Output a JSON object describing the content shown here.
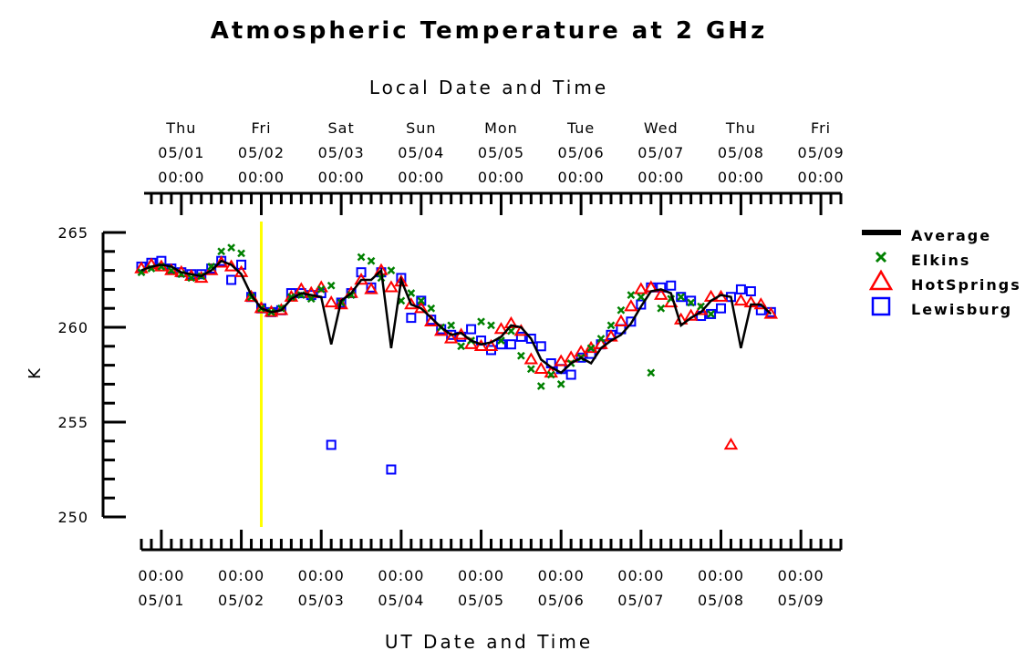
{
  "chart_data": {
    "type": "line",
    "title": "Atmospheric Temperature at 2 GHz",
    "xlabel_top": "Local Date and Time",
    "xlabel_bottom": "UT Date and Time",
    "ylabel": "K",
    "ylim": [
      250,
      265
    ],
    "yticks": [
      250,
      255,
      260,
      265
    ],
    "top_ticks": [
      {
        "x": 0.5,
        "day": "Thu",
        "date": "05/01",
        "time": "00:00"
      },
      {
        "x": 1.5,
        "day": "Fri",
        "date": "05/02",
        "time": "00:00"
      },
      {
        "x": 2.5,
        "day": "Sat",
        "date": "05/03",
        "time": "00:00"
      },
      {
        "x": 3.5,
        "day": "Sun",
        "date": "05/04",
        "time": "00:00"
      },
      {
        "x": 4.5,
        "day": "Mon",
        "date": "05/05",
        "time": "00:00"
      },
      {
        "x": 5.5,
        "day": "Tue",
        "date": "05/06",
        "time": "00:00"
      },
      {
        "x": 6.5,
        "day": "Wed",
        "date": "05/07",
        "time": "00:00"
      },
      {
        "x": 7.5,
        "day": "Thu",
        "date": "05/08",
        "time": "00:00"
      },
      {
        "x": 8.5,
        "day": "Fri",
        "date": "05/09",
        "time": "00:00"
      }
    ],
    "bottom_ticks": [
      {
        "x": 0.25,
        "time": "00:00",
        "date": "05/01"
      },
      {
        "x": 1.25,
        "time": "00:00",
        "date": "05/02"
      },
      {
        "x": 2.25,
        "time": "00:00",
        "date": "05/03"
      },
      {
        "x": 3.25,
        "time": "00:00",
        "date": "05/04"
      },
      {
        "x": 4.25,
        "time": "00:00",
        "date": "05/05"
      },
      {
        "x": 5.25,
        "time": "00:00",
        "date": "05/06"
      },
      {
        "x": 6.25,
        "time": "00:00",
        "date": "05/07"
      },
      {
        "x": 7.25,
        "time": "00:00",
        "date": "05/08"
      },
      {
        "x": 8.25,
        "time": "00:00",
        "date": "05/09"
      }
    ],
    "xlim": [
      0,
      8.75
    ],
    "marker_line": {
      "x": 1.5,
      "color": "#ffff00"
    },
    "legend_position": "right",
    "series": [
      {
        "name": "Average",
        "color": "#000000",
        "style": "line",
        "points": [
          [
            0.0,
            263.0
          ],
          [
            0.125,
            263.2
          ],
          [
            0.25,
            263.3
          ],
          [
            0.375,
            263.2
          ],
          [
            0.5,
            262.9
          ],
          [
            0.625,
            262.8
          ],
          [
            0.75,
            262.7
          ],
          [
            0.875,
            263.0
          ],
          [
            1.0,
            263.5
          ],
          [
            1.125,
            263.3
          ],
          [
            1.25,
            262.8
          ],
          [
            1.375,
            261.7
          ],
          [
            1.5,
            261.0
          ],
          [
            1.625,
            260.8
          ],
          [
            1.75,
            260.9
          ],
          [
            1.875,
            261.5
          ],
          [
            2.0,
            261.8
          ],
          [
            2.125,
            261.7
          ],
          [
            2.25,
            261.6
          ],
          [
            2.375,
            259.1
          ],
          [
            2.5,
            261.4
          ],
          [
            2.625,
            261.8
          ],
          [
            2.75,
            262.5
          ],
          [
            2.875,
            262.5
          ],
          [
            3.0,
            263.0
          ],
          [
            3.125,
            258.9
          ],
          [
            3.25,
            262.5
          ],
          [
            3.375,
            261.2
          ],
          [
            3.5,
            261.0
          ],
          [
            3.625,
            260.5
          ],
          [
            3.75,
            260.0
          ],
          [
            3.875,
            259.6
          ],
          [
            4.0,
            259.7
          ],
          [
            4.125,
            259.3
          ],
          [
            4.25,
            259.1
          ],
          [
            4.375,
            259.2
          ],
          [
            4.5,
            259.5
          ],
          [
            4.625,
            260.1
          ],
          [
            4.75,
            260.0
          ],
          [
            4.875,
            259.4
          ],
          [
            5.0,
            258.3
          ],
          [
            5.125,
            257.9
          ],
          [
            5.25,
            257.6
          ],
          [
            5.375,
            258.1
          ],
          [
            5.5,
            258.4
          ],
          [
            5.625,
            258.1
          ],
          [
            5.75,
            258.9
          ],
          [
            5.875,
            259.3
          ],
          [
            6.0,
            259.6
          ],
          [
            6.125,
            260.2
          ],
          [
            6.25,
            261.1
          ],
          [
            6.375,
            261.9
          ],
          [
            6.5,
            262.0
          ],
          [
            6.625,
            261.8
          ],
          [
            6.75,
            260.1
          ],
          [
            6.875,
            260.5
          ],
          [
            7.0,
            260.8
          ],
          [
            7.125,
            261.4
          ],
          [
            7.25,
            261.7
          ],
          [
            7.375,
            261.6
          ],
          [
            7.5,
            258.9
          ],
          [
            7.625,
            261.2
          ],
          [
            7.75,
            261.2
          ],
          [
            7.875,
            260.7
          ]
        ]
      },
      {
        "name": "Elkins",
        "color": "#008000",
        "style": "x",
        "points": [
          [
            0.0,
            262.9
          ],
          [
            0.125,
            263.1
          ],
          [
            0.25,
            263.2
          ],
          [
            0.375,
            263.0
          ],
          [
            0.5,
            262.8
          ],
          [
            0.625,
            262.6
          ],
          [
            0.75,
            262.7
          ],
          [
            0.875,
            263.2
          ],
          [
            1.0,
            264.0
          ],
          [
            1.125,
            264.2
          ],
          [
            1.25,
            263.9
          ],
          [
            1.375,
            261.6
          ],
          [
            1.5,
            261.0
          ],
          [
            1.625,
            260.8
          ],
          [
            1.75,
            261.0
          ],
          [
            1.875,
            261.6
          ],
          [
            2.0,
            261.7
          ],
          [
            2.125,
            261.5
          ],
          [
            2.25,
            262.0
          ],
          [
            2.375,
            262.2
          ],
          [
            2.5,
            261.3
          ],
          [
            2.625,
            261.7
          ],
          [
            2.75,
            263.7
          ],
          [
            2.875,
            263.5
          ],
          [
            3.0,
            262.6
          ],
          [
            3.125,
            263.0
          ],
          [
            3.25,
            261.4
          ],
          [
            3.375,
            261.8
          ],
          [
            3.5,
            261.4
          ],
          [
            3.625,
            261.0
          ],
          [
            3.75,
            260.0
          ],
          [
            3.875,
            260.1
          ],
          [
            4.0,
            259.0
          ],
          [
            4.125,
            259.3
          ],
          [
            4.25,
            260.3
          ],
          [
            4.375,
            260.1
          ],
          [
            4.5,
            259.3
          ],
          [
            4.625,
            259.8
          ],
          [
            4.75,
            258.5
          ],
          [
            4.875,
            257.8
          ],
          [
            5.0,
            256.9
          ],
          [
            5.125,
            257.5
          ],
          [
            5.25,
            257.0
          ],
          [
            5.375,
            258.1
          ],
          [
            5.5,
            258.4
          ],
          [
            5.625,
            258.9
          ],
          [
            5.75,
            259.4
          ],
          [
            5.875,
            260.1
          ],
          [
            6.0,
            260.9
          ],
          [
            6.125,
            261.7
          ],
          [
            6.25,
            261.6
          ],
          [
            6.375,
            257.6
          ],
          [
            6.5,
            261.0
          ],
          [
            6.625,
            261.5
          ],
          [
            6.75,
            261.6
          ],
          [
            6.875,
            261.3
          ],
          [
            7.0,
            261.1
          ],
          [
            7.125,
            260.7
          ]
        ]
      },
      {
        "name": "HotSprings",
        "color": "#ff0000",
        "style": "triangle",
        "points": [
          [
            0.0,
            263.1
          ],
          [
            0.125,
            263.3
          ],
          [
            0.25,
            263.2
          ],
          [
            0.375,
            263.0
          ],
          [
            0.5,
            262.9
          ],
          [
            0.625,
            262.7
          ],
          [
            0.75,
            262.6
          ],
          [
            0.875,
            263.0
          ],
          [
            1.0,
            263.4
          ],
          [
            1.125,
            263.2
          ],
          [
            1.25,
            262.9
          ],
          [
            1.375,
            261.6
          ],
          [
            1.5,
            261.0
          ],
          [
            1.625,
            260.8
          ],
          [
            1.75,
            260.9
          ],
          [
            1.875,
            261.6
          ],
          [
            2.0,
            262.0
          ],
          [
            2.125,
            261.8
          ],
          [
            2.25,
            262.1
          ],
          [
            2.375,
            261.3
          ],
          [
            2.5,
            261.2
          ],
          [
            2.625,
            261.8
          ],
          [
            2.75,
            262.5
          ],
          [
            2.875,
            262.0
          ],
          [
            3.0,
            263.0
          ],
          [
            3.125,
            262.1
          ],
          [
            3.25,
            262.4
          ],
          [
            3.375,
            261.2
          ],
          [
            3.5,
            261.0
          ],
          [
            3.625,
            260.3
          ],
          [
            3.75,
            259.8
          ],
          [
            3.875,
            259.4
          ],
          [
            4.0,
            259.6
          ],
          [
            4.125,
            259.1
          ],
          [
            4.25,
            259.0
          ],
          [
            4.375,
            259.0
          ],
          [
            4.5,
            259.9
          ],
          [
            4.625,
            260.2
          ],
          [
            4.75,
            259.8
          ],
          [
            4.875,
            258.3
          ],
          [
            5.0,
            257.8
          ],
          [
            5.125,
            257.6
          ],
          [
            5.25,
            258.2
          ],
          [
            5.375,
            258.4
          ],
          [
            5.5,
            258.7
          ],
          [
            5.625,
            258.9
          ],
          [
            5.75,
            259.1
          ],
          [
            5.875,
            259.5
          ],
          [
            6.0,
            260.3
          ],
          [
            6.125,
            261.1
          ],
          [
            6.25,
            262.0
          ],
          [
            6.375,
            262.1
          ],
          [
            6.5,
            261.7
          ],
          [
            6.625,
            261.3
          ],
          [
            6.75,
            260.4
          ],
          [
            6.875,
            260.6
          ],
          [
            7.0,
            260.9
          ],
          [
            7.125,
            261.6
          ],
          [
            7.25,
            261.6
          ],
          [
            7.375,
            253.8
          ],
          [
            7.5,
            261.4
          ],
          [
            7.625,
            261.3
          ],
          [
            7.75,
            261.2
          ],
          [
            7.875,
            260.7
          ]
        ]
      },
      {
        "name": "Lewisburg",
        "color": "#0000ff",
        "style": "square",
        "points": [
          [
            0.0,
            263.2
          ],
          [
            0.125,
            263.4
          ],
          [
            0.25,
            263.5
          ],
          [
            0.375,
            263.1
          ],
          [
            0.5,
            262.9
          ],
          [
            0.625,
            262.8
          ],
          [
            0.75,
            262.8
          ],
          [
            0.875,
            263.1
          ],
          [
            1.0,
            263.5
          ],
          [
            1.125,
            262.5
          ],
          [
            1.25,
            263.3
          ],
          [
            1.375,
            261.6
          ],
          [
            1.5,
            261.0
          ],
          [
            1.625,
            260.8
          ],
          [
            1.75,
            260.9
          ],
          [
            1.875,
            261.8
          ],
          [
            2.0,
            261.8
          ],
          [
            2.125,
            261.7
          ],
          [
            2.25,
            261.8
          ],
          [
            2.375,
            253.8
          ],
          [
            2.5,
            261.3
          ],
          [
            2.625,
            261.8
          ],
          [
            2.75,
            262.9
          ],
          [
            2.875,
            262.1
          ],
          [
            3.0,
            262.9
          ],
          [
            3.125,
            252.5
          ],
          [
            3.25,
            262.6
          ],
          [
            3.375,
            260.5
          ],
          [
            3.5,
            261.4
          ],
          [
            3.625,
            260.4
          ],
          [
            3.75,
            259.9
          ],
          [
            3.875,
            259.6
          ],
          [
            4.0,
            259.5
          ],
          [
            4.125,
            259.9
          ],
          [
            4.25,
            259.3
          ],
          [
            4.375,
            258.8
          ],
          [
            4.5,
            259.1
          ],
          [
            4.625,
            259.1
          ],
          [
            4.75,
            259.5
          ],
          [
            4.875,
            259.4
          ],
          [
            5.0,
            259.0
          ],
          [
            5.125,
            258.1
          ],
          [
            5.25,
            257.8
          ],
          [
            5.375,
            257.5
          ],
          [
            5.5,
            258.4
          ],
          [
            5.625,
            258.6
          ],
          [
            5.75,
            259.1
          ],
          [
            5.875,
            259.6
          ],
          [
            6.0,
            259.9
          ],
          [
            6.125,
            260.3
          ],
          [
            6.25,
            261.2
          ],
          [
            6.375,
            262.1
          ],
          [
            6.5,
            262.1
          ],
          [
            6.625,
            262.2
          ],
          [
            6.75,
            261.6
          ],
          [
            6.875,
            261.4
          ],
          [
            7.0,
            260.6
          ],
          [
            7.125,
            260.7
          ],
          [
            7.25,
            261.0
          ],
          [
            7.375,
            261.6
          ],
          [
            7.5,
            262.0
          ],
          [
            7.625,
            261.9
          ],
          [
            7.75,
            260.9
          ],
          [
            7.875,
            260.8
          ]
        ]
      }
    ]
  }
}
